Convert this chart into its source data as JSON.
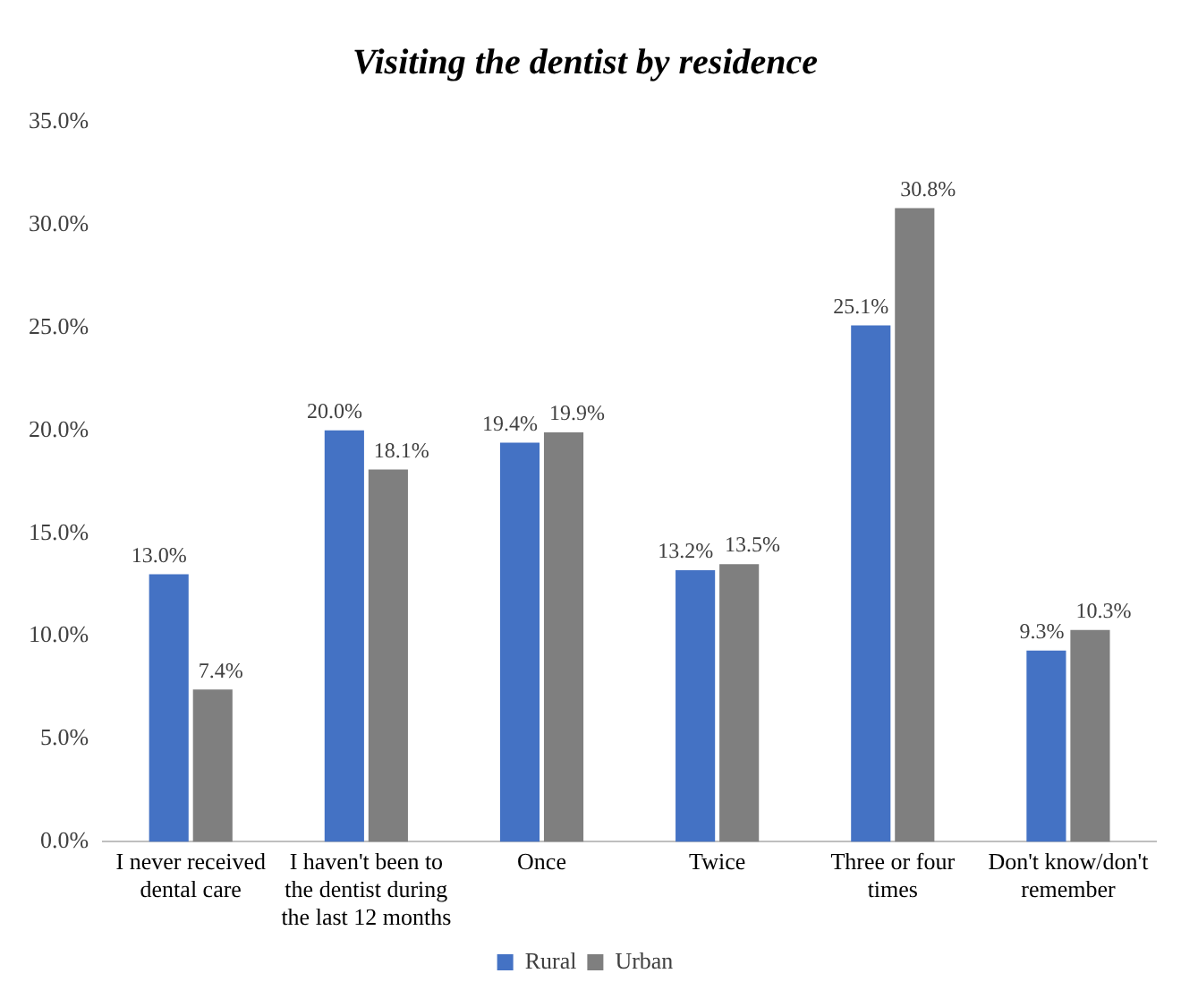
{
  "chart_data": {
    "type": "bar",
    "title": "Visiting the dentist by residence",
    "categories": [
      "I never received dental care",
      "I haven't been to the dentist during the last 12 months",
      "Once",
      "Twice",
      "Three or four times",
      "Don't know/don't remember"
    ],
    "series": [
      {
        "name": "Rural",
        "color": "#4472c4",
        "values": [
          13.0,
          20.0,
          19.4,
          13.2,
          25.1,
          9.3
        ],
        "value_labels": [
          "13.0%",
          "20.0%",
          "19.4%",
          "13.2%",
          "25.1%",
          "9.3%"
        ]
      },
      {
        "name": "Urban",
        "color": "#7f7f7f",
        "values": [
          7.4,
          18.1,
          19.9,
          13.5,
          30.8,
          10.3
        ],
        "value_labels": [
          "7.4%",
          "18.1%",
          "19.9%",
          "13.5%",
          "30.8%",
          "10.3%"
        ]
      }
    ],
    "ylim": [
      0,
      35
    ],
    "yticks": [
      {
        "value": 0,
        "label": "0.0%"
      },
      {
        "value": 5,
        "label": "5.0%"
      },
      {
        "value": 10,
        "label": "10.0%"
      },
      {
        "value": 15,
        "label": "15.0%"
      },
      {
        "value": 20,
        "label": "20.0%"
      },
      {
        "value": 25,
        "label": "25.0%"
      },
      {
        "value": 30,
        "label": "30.0%"
      },
      {
        "value": 35,
        "label": "35.0%"
      }
    ],
    "grid": false,
    "legend": "bottom"
  }
}
